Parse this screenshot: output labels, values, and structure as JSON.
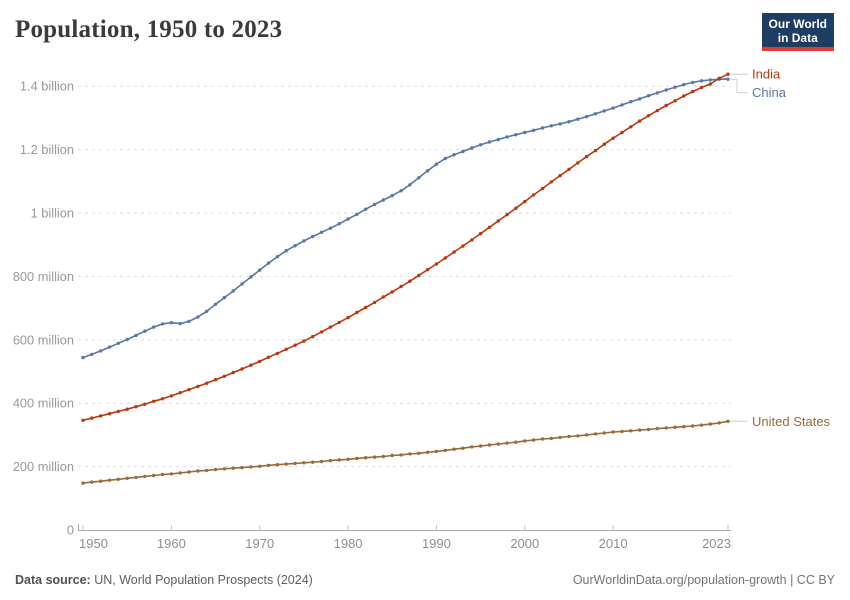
{
  "header": {
    "title": "Population, 1950 to 2023"
  },
  "logo": {
    "line1": "Our World",
    "line2": "in Data",
    "bg_color": "#1d3d63",
    "accent_color": "#dc3d33"
  },
  "footer": {
    "source_label": "Data source:",
    "source_text": " UN, World Population Prospects (2024)",
    "link_text": "OurWorldinData.org/population-growth | CC BY"
  },
  "chart_data": {
    "type": "line",
    "title": "Population, 1950 to 2023",
    "unit": "people (millions)",
    "grid": "horizontal dashed",
    "legend_position": "right-edge line labels",
    "xlim": [
      1950,
      2023
    ],
    "ylim_millions": [
      0,
      1470
    ],
    "x_ticks": [
      1950,
      1960,
      1970,
      1980,
      1990,
      2000,
      2010,
      2023
    ],
    "x_tick_labels": [
      "1950",
      "1960",
      "1970",
      "1980",
      "1990",
      "2000",
      "2010",
      "2023"
    ],
    "y_ticks": [
      {
        "value": 0,
        "label": "0"
      },
      {
        "value": 200,
        "label": "200 million"
      },
      {
        "value": 400,
        "label": "400 million"
      },
      {
        "value": 600,
        "label": "600 million"
      },
      {
        "value": 800,
        "label": "800 million"
      },
      {
        "value": 1000,
        "label": "1 billion"
      },
      {
        "value": 1200,
        "label": "1.2 billion"
      },
      {
        "value": 1400,
        "label": "1.4 billion"
      }
    ],
    "x": [
      1950,
      1951,
      1952,
      1953,
      1954,
      1955,
      1956,
      1957,
      1958,
      1959,
      1960,
      1961,
      1962,
      1963,
      1964,
      1965,
      1966,
      1967,
      1968,
      1969,
      1970,
      1971,
      1972,
      1973,
      1974,
      1975,
      1976,
      1977,
      1978,
      1979,
      1980,
      1981,
      1982,
      1983,
      1984,
      1985,
      1986,
      1987,
      1988,
      1989,
      1990,
      1991,
      1992,
      1993,
      1994,
      1995,
      1996,
      1997,
      1998,
      1999,
      2000,
      2001,
      2002,
      2003,
      2004,
      2005,
      2006,
      2007,
      2008,
      2009,
      2010,
      2011,
      2012,
      2013,
      2014,
      2015,
      2016,
      2017,
      2018,
      2019,
      2020,
      2021,
      2022,
      2023
    ],
    "series": [
      {
        "name": "India",
        "color": "#b9390f",
        "values_millions": [
          346,
          353,
          360,
          367,
          374,
          381,
          389,
          397,
          406,
          414,
          423,
          433,
          443,
          453,
          463,
          474,
          485,
          497,
          508,
          520,
          532,
          545,
          557,
          570,
          583,
          596,
          610,
          625,
          640,
          655,
          670,
          686,
          702,
          718,
          735,
          751,
          768,
          785,
          803,
          821,
          839,
          858,
          877,
          896,
          915,
          935,
          955,
          975,
          995,
          1015,
          1036,
          1057,
          1077,
          1098,
          1118,
          1138,
          1158,
          1178,
          1197,
          1217,
          1236,
          1254,
          1272,
          1290,
          1307,
          1323,
          1339,
          1354,
          1369,
          1383,
          1396,
          1407,
          1425,
          1438
        ]
      },
      {
        "name": "China",
        "color": "#5878a8",
        "values_millions": [
          544,
          554,
          565,
          577,
          589,
          601,
          614,
          627,
          640,
          650,
          654,
          651,
          658,
          672,
          690,
          712,
          733,
          754,
          776,
          798,
          820,
          842,
          862,
          881,
          897,
          912,
          926,
          939,
          952,
          966,
          981,
          996,
          1012,
          1027,
          1041,
          1055,
          1070,
          1089,
          1111,
          1133,
          1154,
          1172,
          1184,
          1194,
          1205,
          1215,
          1224,
          1232,
          1240,
          1247,
          1254,
          1261,
          1268,
          1275,
          1281,
          1288,
          1296,
          1304,
          1313,
          1322,
          1331,
          1341,
          1351,
          1360,
          1370,
          1379,
          1388,
          1397,
          1405,
          1412,
          1417,
          1420,
          1422,
          1422
        ]
      },
      {
        "name": "United States",
        "color": "#996d39",
        "values_millions": [
          148,
          151,
          154,
          157,
          160,
          163,
          166,
          169,
          172,
          175,
          177,
          180,
          183,
          186,
          188,
          191,
          193,
          195,
          197,
          199,
          201,
          204,
          206,
          208,
          210,
          212,
          214,
          216,
          219,
          221,
          223,
          226,
          228,
          230,
          232,
          235,
          237,
          240,
          242,
          245,
          248,
          251,
          255,
          258,
          262,
          265,
          268,
          271,
          274,
          277,
          281,
          284,
          287,
          289,
          292,
          295,
          297,
          300,
          303,
          306,
          309,
          311,
          313,
          315,
          317,
          320,
          322,
          324,
          326,
          328,
          331,
          334,
          338,
          343
        ]
      }
    ]
  }
}
